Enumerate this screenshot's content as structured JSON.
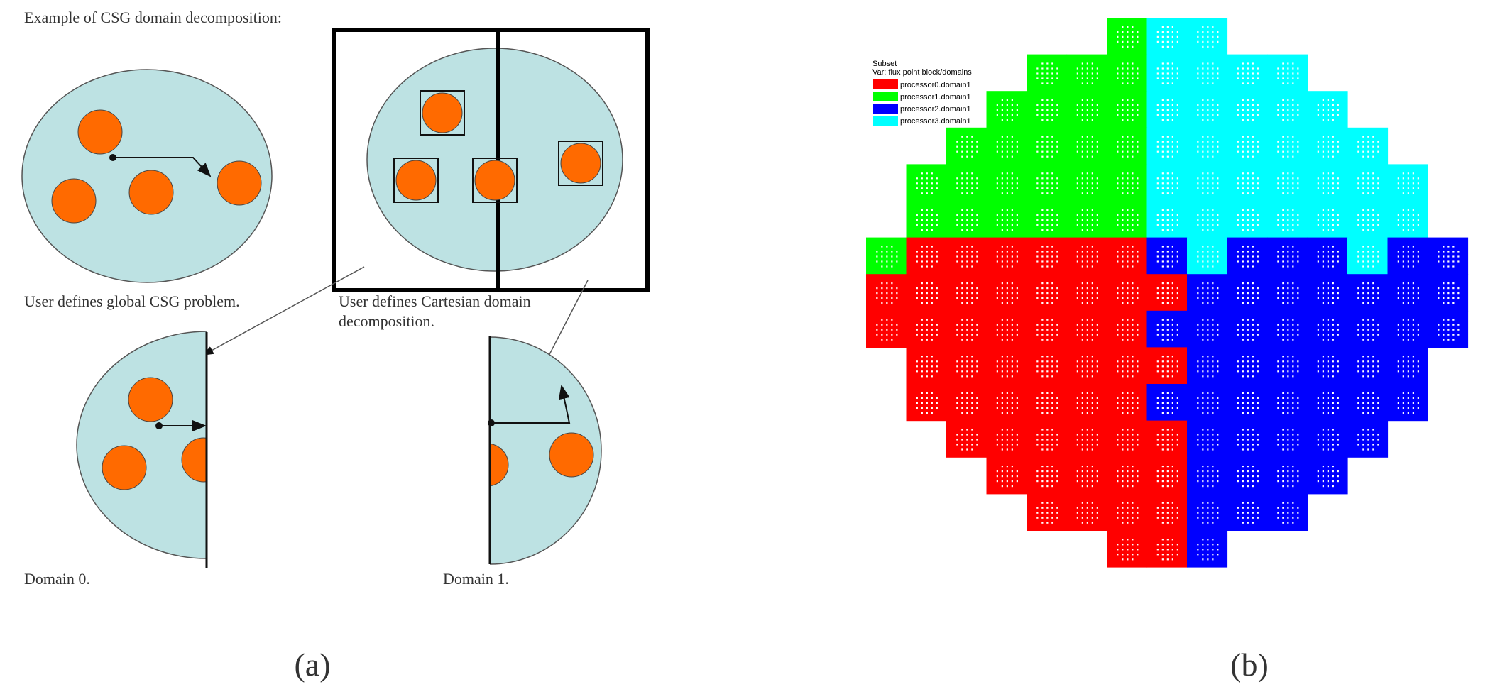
{
  "panel_a": {
    "title": "Example of CSG domain decomposition:",
    "caption_global": "User defines global CSG problem.",
    "caption_cartesian_line1": "User defines Cartesian domain",
    "caption_cartesian_line2": "decomposition.",
    "caption_domain0": "Domain 0.",
    "caption_domain1": "Domain 1.",
    "label": "(a)"
  },
  "panel_b": {
    "legend_title": "Subset",
    "legend_var": "Var: flux point block/domains",
    "legend_items": [
      {
        "label": "processor0.domain1",
        "color": "#ff0000"
      },
      {
        "label": "processor1.domain1",
        "color": "#00ff00"
      },
      {
        "label": "processor2.domain1",
        "color": "#0000ff"
      },
      {
        "label": "processor3.domain1",
        "color": "#00ffff"
      }
    ],
    "label": "(b)"
  },
  "colors": {
    "disk_fill": "#bde2e3",
    "pin_fill": "#ff6a00",
    "frame_stroke": "#000000"
  }
}
